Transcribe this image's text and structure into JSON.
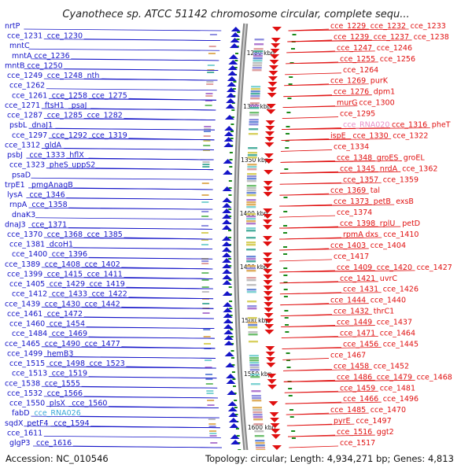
{
  "title": "Cyanothece sp. ATCC 51142 chromosome circular, complete sequ...",
  "footer": {
    "accession": "Accession: NC_010546",
    "topology": "Topology: circular; Length: 4,934,271 bp; Genes: 4,813"
  },
  "colors": {
    "left": "#1515c8",
    "right": "#e01010",
    "rna": "#3aa8d8",
    "rna_right": "#e890c8",
    "ticks": "#1a8a1a",
    "backbone": "#888888"
  },
  "scale_ticks": [
    "1250 kbp",
    "1300 kbp",
    "1350 kbp",
    "1400 kbp",
    "1450 kbp",
    "1500 kbp",
    "1550 kbp",
    "1600 kbp"
  ],
  "left_labels": [
    {
      "t": "nrtP",
      "k": "p"
    },
    {
      "t": "cce_1231",
      "k": "p"
    },
    {
      "t": "cce_1230",
      "k": "p"
    },
    {
      "t": "mntC",
      "k": "p"
    },
    {
      "t": "mntA",
      "k": "p"
    },
    {
      "t": "cce_1236",
      "k": "p"
    },
    {
      "t": "mntB",
      "k": "p"
    },
    {
      "t": "cce_1250",
      "k": "p"
    },
    {
      "t": "cce_1249",
      "k": "p"
    },
    {
      "t": "cce_1248",
      "k": "p"
    },
    {
      "t": "nth",
      "k": "p"
    },
    {
      "t": "cce_1262",
      "k": "p"
    },
    {
      "t": "cce_1261",
      "k": "p"
    },
    {
      "t": "cce_1258",
      "k": "p"
    },
    {
      "t": "cce_1275",
      "k": "p"
    },
    {
      "t": "cce_1271",
      "k": "p"
    },
    {
      "t": "ftsH1",
      "k": "p"
    },
    {
      "t": "psaJ",
      "k": "p"
    },
    {
      "t": "cce_1287",
      "k": "p"
    },
    {
      "t": "cce_1285",
      "k": "p"
    },
    {
      "t": "cce_1282",
      "k": "p"
    },
    {
      "t": "psbL",
      "k": "p"
    },
    {
      "t": "dnaJ1",
      "k": "p"
    },
    {
      "t": "cce_1297",
      "k": "p"
    },
    {
      "t": "cce_1292",
      "k": "p"
    },
    {
      "t": "cce_1319",
      "k": "p"
    },
    {
      "t": "cce_1312",
      "k": "p"
    },
    {
      "t": "gldA",
      "k": "p"
    },
    {
      "t": "psbJ",
      "k": "p"
    },
    {
      "t": "cce_1333",
      "k": "p"
    },
    {
      "t": "hflX",
      "k": "p"
    },
    {
      "t": "cce_1323",
      "k": "p"
    },
    {
      "t": "pheS",
      "k": "p"
    },
    {
      "t": "uppS2",
      "k": "p"
    },
    {
      "t": "psaD",
      "k": "p"
    },
    {
      "t": "trpE1",
      "k": "p"
    },
    {
      "t": "pmgA",
      "k": "p"
    },
    {
      "t": "nagB",
      "k": "p"
    },
    {
      "t": "lysA",
      "k": "p"
    },
    {
      "t": "cce_1346",
      "k": "p"
    },
    {
      "t": "rnpA",
      "k": "p"
    },
    {
      "t": "cce_1358",
      "k": "p"
    },
    {
      "t": "dnaK3",
      "k": "p"
    },
    {
      "t": "dnaJ3",
      "k": "p"
    },
    {
      "t": "cce_1371",
      "k": "p"
    },
    {
      "t": "cce_1370",
      "k": "p"
    },
    {
      "t": "cce_1368",
      "k": "p"
    },
    {
      "t": "cce_1385",
      "k": "p"
    },
    {
      "t": "cce_1381",
      "k": "p"
    },
    {
      "t": "dcoH1",
      "k": "p"
    },
    {
      "t": "cce_1400",
      "k": "p"
    },
    {
      "t": "cce_1396",
      "k": "p"
    },
    {
      "t": "cce_1389",
      "k": "p"
    },
    {
      "t": "cce_1408",
      "k": "p"
    },
    {
      "t": "cce_1402",
      "k": "p"
    },
    {
      "t": "cce_1399",
      "k": "p"
    },
    {
      "t": "cce_1415",
      "k": "p"
    },
    {
      "t": "cce_1411",
      "k": "p"
    },
    {
      "t": "cce_1405",
      "k": "p"
    },
    {
      "t": "cce_1429",
      "k": "p"
    },
    {
      "t": "cce_1419",
      "k": "p"
    },
    {
      "t": "cce_1412",
      "k": "p"
    },
    {
      "t": "cce_1433",
      "k": "p"
    },
    {
      "t": "cce_1422",
      "k": "p"
    },
    {
      "t": "cce_1439",
      "k": "p"
    },
    {
      "t": "cce_1430",
      "k": "p"
    },
    {
      "t": "cce_1442",
      "k": "p"
    },
    {
      "t": "cce_1461",
      "k": "p"
    },
    {
      "t": "cce_1472",
      "k": "p"
    },
    {
      "t": "cce_1460",
      "k": "p"
    },
    {
      "t": "cce_1454",
      "k": "p"
    },
    {
      "t": "cce_1484",
      "k": "p"
    },
    {
      "t": "cce_1469",
      "k": "p"
    },
    {
      "t": "cce_1465",
      "k": "p"
    },
    {
      "t": "cce_1490",
      "k": "p"
    },
    {
      "t": "cce_1477",
      "k": "p"
    },
    {
      "t": "cce_1499",
      "k": "p"
    },
    {
      "t": "hemB3",
      "k": "p"
    },
    {
      "t": "cce_1515",
      "k": "p"
    },
    {
      "t": "cce_1498",
      "k": "p"
    },
    {
      "t": "cce_1523",
      "k": "p"
    },
    {
      "t": "cce_1513",
      "k": "p"
    },
    {
      "t": "cce_1519",
      "k": "p"
    },
    {
      "t": "cce_1538",
      "k": "p"
    },
    {
      "t": "cce_1555",
      "k": "p"
    },
    {
      "t": "cce_1532",
      "k": "p"
    },
    {
      "t": "cce_1566",
      "k": "p"
    },
    {
      "t": "cce_1550",
      "k": "p"
    },
    {
      "t": "plsX",
      "k": "p"
    },
    {
      "t": "cce_1560",
      "k": "p"
    },
    {
      "t": "fabD",
      "k": "p"
    },
    {
      "t": "cce_RNA026",
      "k": "r"
    },
    {
      "t": "sqdX",
      "k": "p"
    },
    {
      "t": "petF4",
      "k": "p"
    },
    {
      "t": "cce_1594",
      "k": "p"
    },
    {
      "t": "cce_1611",
      "k": "p"
    },
    {
      "t": "glgP3",
      "k": "p"
    },
    {
      "t": "cce_1616",
      "k": "p"
    }
  ],
  "right_labels": [
    {
      "t": "cce_1229",
      "k": "p"
    },
    {
      "t": "cce_1232",
      "k": "p"
    },
    {
      "t": "cce_1233",
      "k": "p"
    },
    {
      "t": "cce_1239",
      "k": "p"
    },
    {
      "t": "cce_1237",
      "k": "p"
    },
    {
      "t": "cce_1238",
      "k": "p"
    },
    {
      "t": "cce_1247",
      "k": "p"
    },
    {
      "t": "cce_1246",
      "k": "p"
    },
    {
      "t": "cce_1255",
      "k": "p"
    },
    {
      "t": "cce_1256",
      "k": "p"
    },
    {
      "t": "cce_1264",
      "k": "p"
    },
    {
      "t": "cce_1269",
      "k": "p"
    },
    {
      "t": "purK",
      "k": "p"
    },
    {
      "t": "cce_1276",
      "k": "p"
    },
    {
      "t": "dpm1",
      "k": "p"
    },
    {
      "t": "murG",
      "k": "p"
    },
    {
      "t": "cce_1300",
      "k": "p"
    },
    {
      "t": "cce_1295",
      "k": "p"
    },
    {
      "t": "cce_RNA020",
      "k": "r"
    },
    {
      "t": "cce_1316",
      "k": "p"
    },
    {
      "t": "pheT",
      "k": "p"
    },
    {
      "t": "ispE",
      "k": "p"
    },
    {
      "t": "cce_1330",
      "k": "p"
    },
    {
      "t": "cce_1322",
      "k": "p"
    },
    {
      "t": "cce_1334",
      "k": "p"
    },
    {
      "t": "cce_1348",
      "k": "p"
    },
    {
      "t": "groES",
      "k": "p"
    },
    {
      "t": "groEL",
      "k": "p"
    },
    {
      "t": "cce_1345",
      "k": "p"
    },
    {
      "t": "nrdA",
      "k": "p"
    },
    {
      "t": "cce_1362",
      "k": "p"
    },
    {
      "t": "cce_1357",
      "k": "p"
    },
    {
      "t": "cce_1359",
      "k": "p"
    },
    {
      "t": "cce_1369",
      "k": "p"
    },
    {
      "t": "tal",
      "k": "p"
    },
    {
      "t": "cce_1373",
      "k": "p"
    },
    {
      "t": "petB",
      "k": "p"
    },
    {
      "t": "exsB",
      "k": "p"
    },
    {
      "t": "cce_1374",
      "k": "p"
    },
    {
      "t": "cce_1398",
      "k": "p"
    },
    {
      "t": "rplU",
      "k": "p"
    },
    {
      "t": "petD",
      "k": "p"
    },
    {
      "t": "rpmA",
      "k": "p"
    },
    {
      "t": "dxs",
      "k": "p"
    },
    {
      "t": "cce_1410",
      "k": "p"
    },
    {
      "t": "cce_1403",
      "k": "p"
    },
    {
      "t": "cce_1404",
      "k": "p"
    },
    {
      "t": "cce_1417",
      "k": "p"
    },
    {
      "t": "cce_1409",
      "k": "p"
    },
    {
      "t": "cce_1420",
      "k": "p"
    },
    {
      "t": "cce_1427",
      "k": "p"
    },
    {
      "t": "cce_1421",
      "k": "p"
    },
    {
      "t": "uvrC",
      "k": "p"
    },
    {
      "t": "cce_1431",
      "k": "p"
    },
    {
      "t": "cce_1426",
      "k": "p"
    },
    {
      "t": "cce_1444",
      "k": "p"
    },
    {
      "t": "cce_1440",
      "k": "p"
    },
    {
      "t": "cce_1432",
      "k": "p"
    },
    {
      "t": "thrC1",
      "k": "p"
    },
    {
      "t": "cce_1449",
      "k": "p"
    },
    {
      "t": "cce_1437",
      "k": "p"
    },
    {
      "t": "cce_1471",
      "k": "p"
    },
    {
      "t": "cce_1464",
      "k": "p"
    },
    {
      "t": "cce_1456",
      "k": "p"
    },
    {
      "t": "cce_1445",
      "k": "p"
    },
    {
      "t": "cce_1467",
      "k": "p"
    },
    {
      "t": "cce_1458",
      "k": "p"
    },
    {
      "t": "cce_1452",
      "k": "p"
    },
    {
      "t": "cce_1486",
      "k": "p"
    },
    {
      "t": "cce_1479",
      "k": "p"
    },
    {
      "t": "cce_1468",
      "k": "p"
    },
    {
      "t": "cce_1459",
      "k": "p"
    },
    {
      "t": "cce_1481",
      "k": "p"
    },
    {
      "t": "cce_1466",
      "k": "p"
    },
    {
      "t": "cce_1496",
      "k": "p"
    },
    {
      "t": "cce_1485",
      "k": "p"
    },
    {
      "t": "cce_1470",
      "k": "p"
    },
    {
      "t": "pyrE",
      "k": "p"
    },
    {
      "t": "cce_1497",
      "k": "p"
    },
    {
      "t": "cce_1516",
      "k": "p"
    },
    {
      "t": "ggt2",
      "k": "p"
    },
    {
      "t": "cce_1517",
      "k": "p"
    }
  ]
}
